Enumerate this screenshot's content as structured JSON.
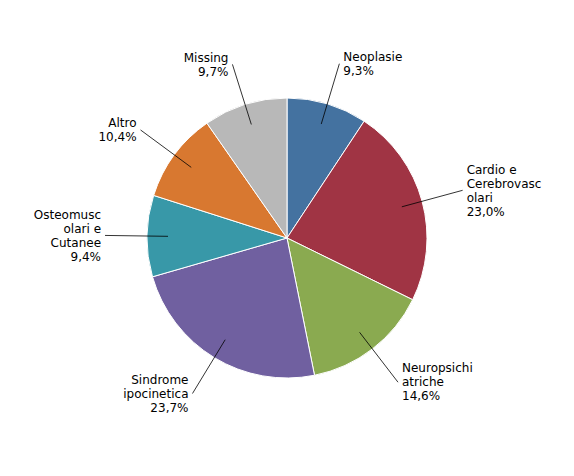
{
  "chart_data": {
    "type": "pie",
    "categories": [
      "Neoplasie",
      "Cardio e\nCerebrovasc\nolari",
      "Neuropsichi\natriche",
      "Sindrome\nipocinetica",
      "Osteomusc\nolari e\nCutanee",
      "Altro",
      "Missing"
    ],
    "values": [
      9.3,
      23.0,
      14.6,
      23.7,
      9.4,
      10.4,
      9.7
    ],
    "value_labels": [
      "9,3%",
      "23,0%",
      "14,6%",
      "23,7%",
      "9,4%",
      "10,4%",
      "9,7%"
    ],
    "colors": [
      "#4472a0",
      "#a03444",
      "#8aaa50",
      "#7060a0",
      "#3898a8",
      "#d87830",
      "#b8b8b8"
    ],
    "data_labels": true
  }
}
